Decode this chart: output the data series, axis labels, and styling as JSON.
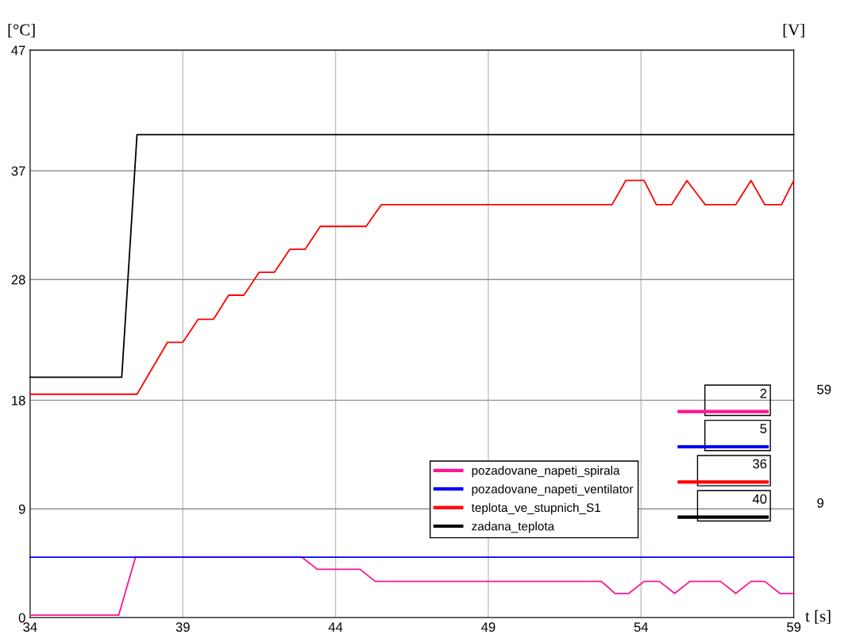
{
  "chart_data": {
    "type": "line",
    "xlabel": "t [s]",
    "ylabel": "[°C]",
    "y2label": "[V]",
    "xlim": [
      34,
      59
    ],
    "xticks": [
      34,
      39,
      44,
      49,
      54,
      59
    ],
    "ylim": [
      0,
      47
    ],
    "yticks": [
      0,
      9,
      18,
      28,
      37,
      47
    ],
    "grid": true,
    "legend": "bottom",
    "line_style": "solid",
    "marker": "none",
    "series": [
      {
        "name": "pozadovane_napeti_spirala",
        "color": "#ff1493",
        "x": [
          34,
          36.9,
          37.45,
          42.9,
          43.4,
          44.8,
          45.3,
          52.7,
          53.15,
          53.6,
          54.1,
          54.6,
          55.1,
          55.6,
          56.6,
          57.1,
          57.6,
          58.05,
          58.55,
          59
        ],
        "values": [
          0.2,
          0.2,
          5,
          5,
          4,
          4,
          3,
          3,
          2,
          2,
          3,
          3,
          2,
          3,
          3,
          2,
          3,
          3,
          2,
          2
        ]
      },
      {
        "name": "pozadovane_napeti_ventilator",
        "color": "#0000ff",
        "x": [
          34,
          59
        ],
        "values": [
          5,
          5
        ]
      },
      {
        "name": "teplota_ve_stupnich_S1",
        "color": "#ff0000",
        "x": [
          34,
          37.5,
          38.5,
          39.0,
          39.5,
          40.0,
          40.5,
          41.0,
          41.5,
          42.0,
          42.5,
          43.0,
          43.5,
          45.0,
          45.5,
          53.05,
          53.5,
          54.1,
          54.5,
          55.0,
          55.5,
          56.1,
          57.1,
          57.6,
          58.05,
          58.6,
          59
        ],
        "values": [
          18.5,
          18.5,
          22.8,
          22.8,
          24.7,
          24.7,
          26.7,
          26.7,
          28.6,
          28.6,
          30.5,
          30.5,
          32.4,
          32.4,
          34.2,
          34.2,
          36.2,
          36.2,
          34.2,
          34.2,
          36.2,
          34.2,
          34.2,
          36.2,
          34.2,
          34.2,
          36.2
        ]
      },
      {
        "name": "zadana_teplota",
        "color": "#000000",
        "x": [
          34,
          37.0,
          37.5,
          59
        ],
        "values": [
          19.9,
          19.9,
          40,
          40
        ]
      }
    ],
    "annotations": [
      "59",
      "9",
      "2",
      "5",
      "36",
      "40"
    ]
  }
}
